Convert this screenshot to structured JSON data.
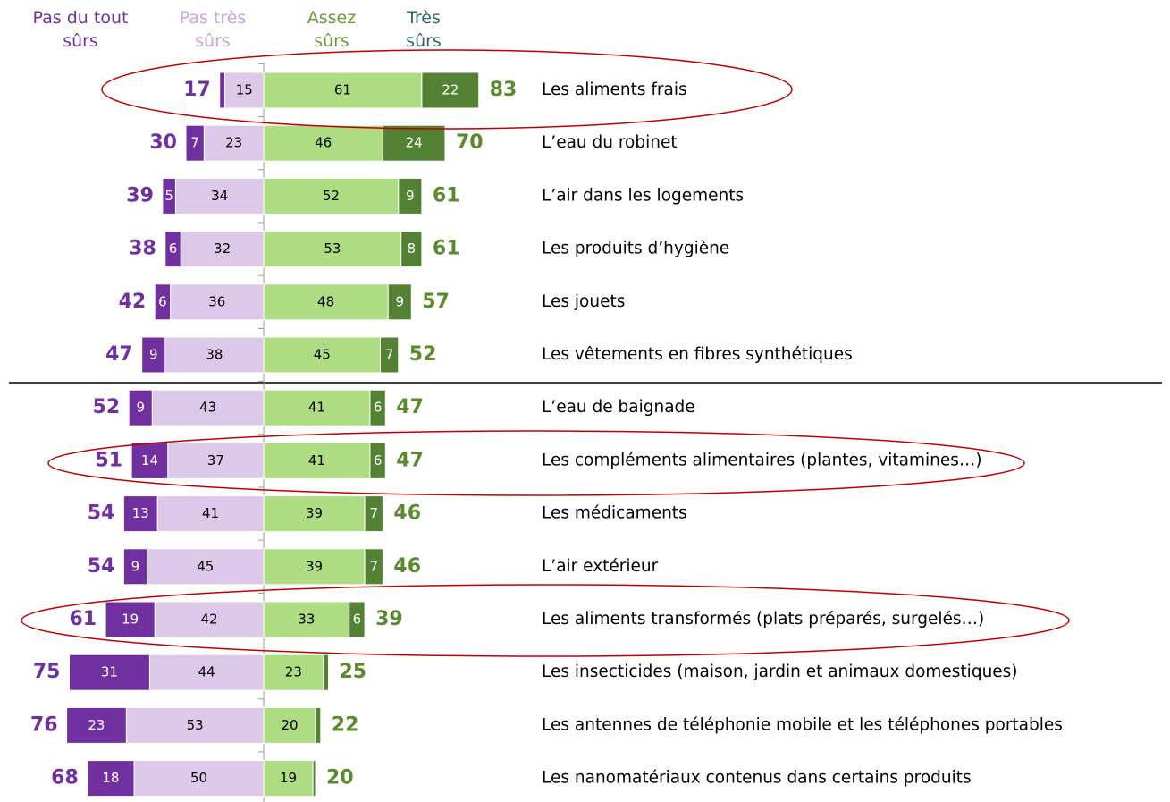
{
  "chart_data": {
    "type": "diverging_bar",
    "categories": [
      "Les aliments frais",
      "L’eau du robinet",
      "L’air dans les logements",
      "Les produits d’hygiène",
      "Les jouets",
      "Les vêtements en fibres synthétiques",
      "L’eau de baignade",
      "Les compléments alimentaires (plantes, vitamines…)",
      "Les médicaments",
      "L’air extérieur",
      "Les aliments transformés (plats préparés, surgelés…)",
      "Les insecticides (maison, jardin et animaux domestiques)",
      "Les antennes de téléphonie mobile et les téléphones portables",
      "Les nanomatériaux contenus dans certains produits"
    ],
    "series": [
      {
        "name": "Pas du tout\nsûrs",
        "color": "#7030a0",
        "legend_color": "#7030a0",
        "side": "left",
        "values": [
          2,
          7,
          5,
          6,
          6,
          9,
          9,
          14,
          13,
          9,
          19,
          31,
          23,
          18
        ]
      },
      {
        "name": "Pas très\nsûrs",
        "color": "#dcc8e8",
        "legend_color": "#c7a2dc",
        "side": "left",
        "values": [
          15,
          23,
          34,
          32,
          36,
          38,
          43,
          37,
          41,
          45,
          42,
          44,
          53,
          50
        ]
      },
      {
        "name": "Assez\nsûrs",
        "color": "#addc82",
        "legend_color": "#6a9a3a",
        "side": "right",
        "values": [
          61,
          46,
          52,
          53,
          48,
          45,
          41,
          41,
          39,
          39,
          33,
          23,
          20,
          19
        ]
      },
      {
        "name": "Très\nsûrs",
        "color": "#548235",
        "legend_color": "#2f6b6a",
        "side": "right",
        "values": [
          22,
          24,
          9,
          8,
          9,
          7,
          6,
          6,
          7,
          7,
          6,
          2,
          2,
          1
        ]
      }
    ],
    "left_totals": [
      17,
      30,
      39,
      38,
      42,
      47,
      52,
      51,
      54,
      54,
      61,
      75,
      76,
      68
    ],
    "right_totals": [
      83,
      70,
      61,
      61,
      57,
      52,
      47,
      47,
      46,
      46,
      39,
      25,
      22,
      20
    ],
    "left_total_color": "#7030a0",
    "right_total_color": "#5a8a2e"
  }
}
